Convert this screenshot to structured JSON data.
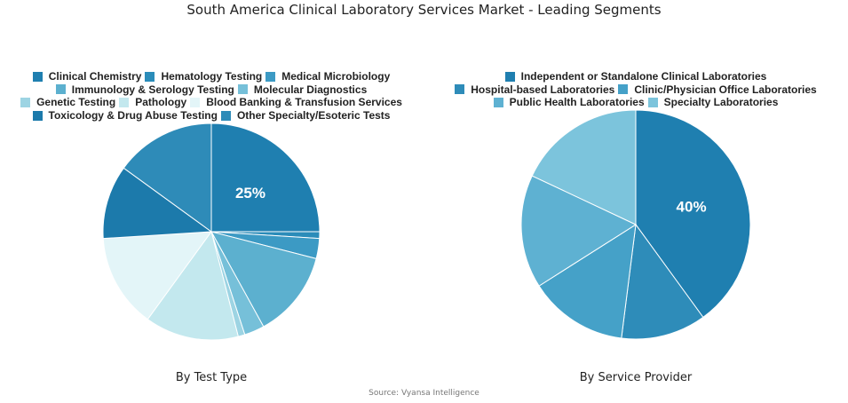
{
  "title": "South America Clinical Laboratory Services Market - Leading Segments",
  "source": "Source: Vyansa Intelligence",
  "chart_data": [
    {
      "type": "pie",
      "caption": "By Test Type",
      "categories": [
        "Clinical Chemistry",
        "Hematology Testing",
        "Medical Microbiology",
        "Immunology & Serology Testing",
        "Molecular Diagnostics",
        "Genetic Testing",
        "Pathology",
        "Blood Banking & Transfusion Services",
        "Toxicology & Drug Abuse Testing",
        "Other Specialty/Esoteric Tests"
      ],
      "values": [
        25,
        1,
        3,
        13,
        3,
        1,
        14,
        14,
        11,
        15
      ],
      "colors": [
        "#1f7fb0",
        "#2b8cb9",
        "#3c9ac4",
        "#5cb0cf",
        "#76c0d9",
        "#9dd4e3",
        "#c3e8ee",
        "#e3f5f8",
        "#1c7aab",
        "#2e8bb8"
      ],
      "data_labels": [
        "25%",
        "",
        "",
        "",
        "",
        "",
        "",
        "",
        "",
        ""
      ],
      "legend_position": "top"
    },
    {
      "type": "pie",
      "caption": "By Service Provider",
      "categories": [
        "Independent or Standalone Clinical Laboratories",
        "Hospital-based Laboratories",
        "Clinic/Physician Office Laboratories",
        "Public Health Laboratories",
        "Specialty Laboratories"
      ],
      "values": [
        40,
        12,
        14,
        16,
        18
      ],
      "colors": [
        "#1f7fb0",
        "#2e8cb9",
        "#45a1c8",
        "#5eb1d2",
        "#7cc4dc"
      ],
      "data_labels": [
        "40%",
        "",
        "",
        "",
        ""
      ],
      "legend_position": "top"
    }
  ]
}
